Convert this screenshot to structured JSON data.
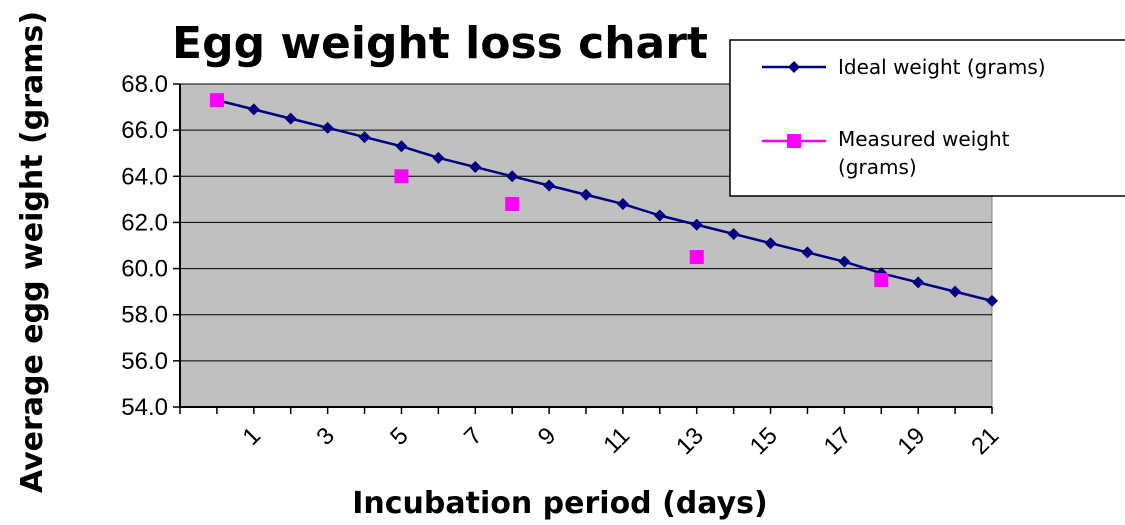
{
  "chart_data": {
    "type": "line",
    "title": "Egg weight loss chart",
    "xlabel": "Incubation period (days)",
    "ylabel": "Average egg weight (grams)",
    "ylim": [
      54.0,
      68.0
    ],
    "ytick_step": 2.0,
    "xlim": [
      -1,
      21
    ],
    "xticks": [
      1,
      3,
      5,
      7,
      9,
      11,
      13,
      15,
      17,
      19,
      21
    ],
    "grid": true,
    "legend_position": "top-right",
    "plot_background": "#c0c0c0",
    "series": [
      {
        "name": "Ideal weight (grams)",
        "marker": "diamond",
        "color": "#000080",
        "x": [
          0,
          1,
          2,
          3,
          4,
          5,
          6,
          7,
          8,
          9,
          10,
          11,
          12,
          13,
          14,
          15,
          16,
          17,
          18,
          19,
          20,
          21
        ],
        "values": [
          67.3,
          66.9,
          66.5,
          66.1,
          65.7,
          65.3,
          64.8,
          64.4,
          64.0,
          63.6,
          63.2,
          62.8,
          62.3,
          61.9,
          61.5,
          61.1,
          60.7,
          60.3,
          59.8,
          59.4,
          59.0,
          58.6
        ]
      },
      {
        "name": "Measured weight (grams)",
        "marker": "square",
        "color": "#ff00ff",
        "x": [
          0,
          5,
          8,
          13,
          18
        ],
        "values": [
          67.3,
          64.0,
          62.8,
          60.5,
          59.5
        ]
      }
    ]
  }
}
